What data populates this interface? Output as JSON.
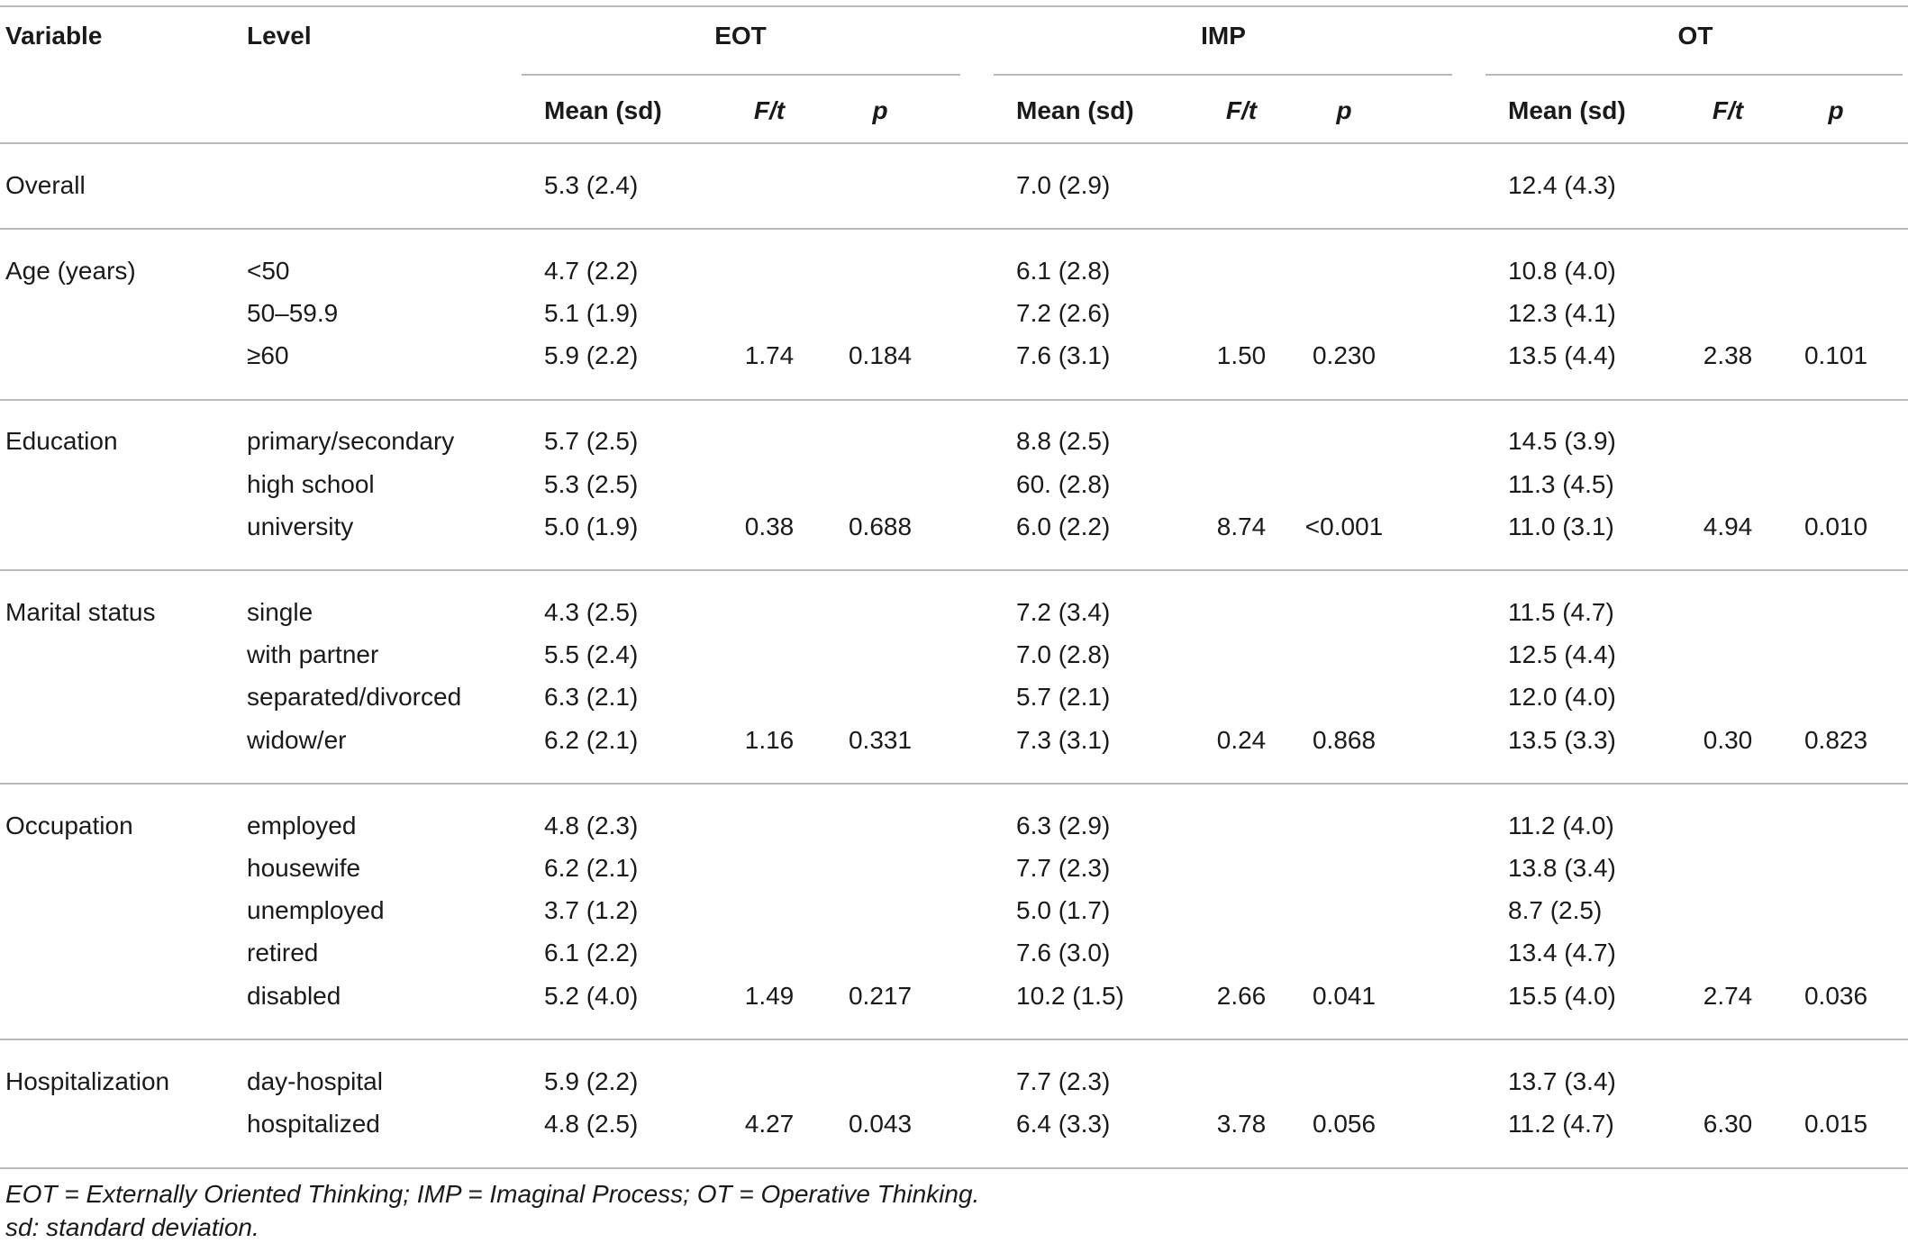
{
  "header": {
    "variable": "Variable",
    "level": "Level",
    "groups": [
      "EOT",
      "IMP",
      "OT"
    ],
    "sub": [
      "Mean (sd)",
      "F/t",
      "p"
    ]
  },
  "sections": [
    {
      "variable": "Overall",
      "rows": [
        {
          "level": "",
          "eot": [
            "5.3 (2.4)",
            "",
            ""
          ],
          "imp": [
            "7.0 (2.9)",
            "",
            ""
          ],
          "ot": [
            "12.4 (4.3)",
            "",
            ""
          ]
        }
      ]
    },
    {
      "variable": "Age (years)",
      "rows": [
        {
          "level": "<50",
          "eot": [
            "4.7 (2.2)",
            "",
            ""
          ],
          "imp": [
            "6.1 (2.8)",
            "",
            ""
          ],
          "ot": [
            "10.8 (4.0)",
            "",
            ""
          ]
        },
        {
          "level": "50–59.9",
          "eot": [
            "5.1 (1.9)",
            "",
            ""
          ],
          "imp": [
            "7.2 (2.6)",
            "",
            ""
          ],
          "ot": [
            "12.3 (4.1)",
            "",
            ""
          ]
        },
        {
          "level": "≥60",
          "eot": [
            "5.9 (2.2)",
            "1.74",
            "0.184"
          ],
          "imp": [
            "7.6 (3.1)",
            "1.50",
            "0.230"
          ],
          "ot": [
            "13.5 (4.4)",
            "2.38",
            "0.101"
          ]
        }
      ]
    },
    {
      "variable": "Education",
      "rows": [
        {
          "level": "primary/secondary",
          "eot": [
            "5.7 (2.5)",
            "",
            ""
          ],
          "imp": [
            "8.8 (2.5)",
            "",
            ""
          ],
          "ot": [
            "14.5 (3.9)",
            "",
            ""
          ]
        },
        {
          "level": "high school",
          "eot": [
            "5.3 (2.5)",
            "",
            ""
          ],
          "imp": [
            "60. (2.8)",
            "",
            ""
          ],
          "ot": [
            "11.3 (4.5)",
            "",
            ""
          ]
        },
        {
          "level": "university",
          "eot": [
            "5.0 (1.9)",
            "0.38",
            "0.688"
          ],
          "imp": [
            "6.0 (2.2)",
            "8.74",
            "<0.001"
          ],
          "ot": [
            "11.0 (3.1)",
            "4.94",
            "0.010"
          ]
        }
      ]
    },
    {
      "variable": "Marital status",
      "rows": [
        {
          "level": "single",
          "eot": [
            "4.3 (2.5)",
            "",
            ""
          ],
          "imp": [
            "7.2 (3.4)",
            "",
            ""
          ],
          "ot": [
            "11.5 (4.7)",
            "",
            ""
          ]
        },
        {
          "level": "with partner",
          "eot": [
            "5.5 (2.4)",
            "",
            ""
          ],
          "imp": [
            "7.0 (2.8)",
            "",
            ""
          ],
          "ot": [
            "12.5 (4.4)",
            "",
            ""
          ]
        },
        {
          "level": "separated/divorced",
          "eot": [
            "6.3 (2.1)",
            "",
            ""
          ],
          "imp": [
            "5.7 (2.1)",
            "",
            ""
          ],
          "ot": [
            "12.0 (4.0)",
            "",
            ""
          ]
        },
        {
          "level": "widow/er",
          "eot": [
            "6.2 (2.1)",
            "1.16",
            "0.331"
          ],
          "imp": [
            "7.3 (3.1)",
            "0.24",
            "0.868"
          ],
          "ot": [
            "13.5 (3.3)",
            "0.30",
            "0.823"
          ]
        }
      ]
    },
    {
      "variable": "Occupation",
      "rows": [
        {
          "level": "employed",
          "eot": [
            "4.8 (2.3)",
            "",
            ""
          ],
          "imp": [
            "6.3 (2.9)",
            "",
            ""
          ],
          "ot": [
            "11.2 (4.0)",
            "",
            ""
          ]
        },
        {
          "level": "housewife",
          "eot": [
            "6.2 (2.1)",
            "",
            ""
          ],
          "imp": [
            "7.7 (2.3)",
            "",
            ""
          ],
          "ot": [
            "13.8 (3.4)",
            "",
            ""
          ]
        },
        {
          "level": "unemployed",
          "eot": [
            "3.7 (1.2)",
            "",
            ""
          ],
          "imp": [
            "5.0 (1.7)",
            "",
            ""
          ],
          "ot": [
            "8.7 (2.5)",
            "",
            ""
          ]
        },
        {
          "level": "retired",
          "eot": [
            "6.1 (2.2)",
            "",
            ""
          ],
          "imp": [
            "7.6 (3.0)",
            "",
            ""
          ],
          "ot": [
            "13.4 (4.7)",
            "",
            ""
          ]
        },
        {
          "level": "disabled",
          "eot": [
            "5.2 (4.0)",
            "1.49",
            "0.217"
          ],
          "imp": [
            "10.2 (1.5)",
            "2.66",
            "0.041"
          ],
          "ot": [
            "15.5 (4.0)",
            "2.74",
            "0.036"
          ]
        }
      ]
    },
    {
      "variable": "Hospitalization",
      "rows": [
        {
          "level": "day-hospital",
          "eot": [
            "5.9 (2.2)",
            "",
            ""
          ],
          "imp": [
            "7.7 (2.3)",
            "",
            ""
          ],
          "ot": [
            "13.7 (3.4)",
            "",
            ""
          ]
        },
        {
          "level": "hospitalized",
          "eot": [
            "4.8 (2.5)",
            "4.27",
            "0.043"
          ],
          "imp": [
            "6.4 (3.3)",
            "3.78",
            "0.056"
          ],
          "ot": [
            "11.2 (4.7)",
            "6.30",
            "0.015"
          ]
        }
      ]
    }
  ],
  "footnotes": [
    "EOT = Externally Oriented Thinking; IMP = Imaginal Process; OT = Operative Thinking.",
    "sd: standard deviation."
  ]
}
